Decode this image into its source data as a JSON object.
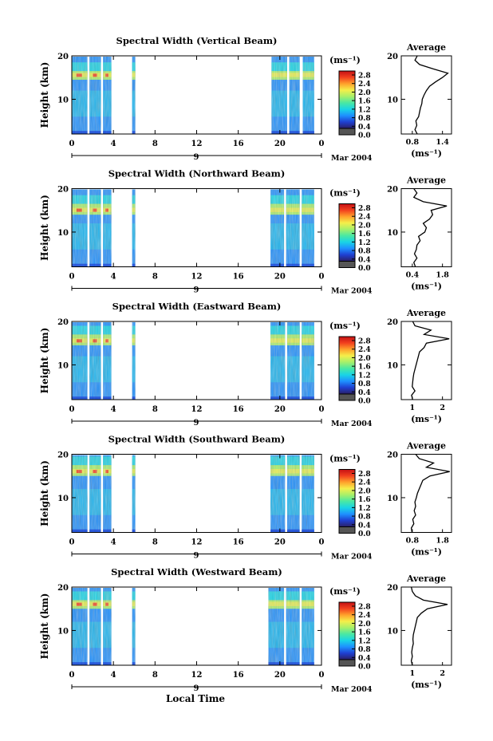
{
  "figure": {
    "xlabel": "Local Time",
    "ylabel": "Height (km)",
    "date_label": "Mar 2004",
    "day_label": "9",
    "colorbar_unit": "(ms⁻¹)",
    "colorbar_ticks": [
      "2.8",
      "2.4",
      "2.0",
      "1.6",
      "1.2",
      "0.8",
      "0.4",
      "0.0"
    ],
    "average_title": "Average",
    "average_unit": "(ms⁻¹)",
    "x_ticks": [
      "0",
      "4",
      "8",
      "12",
      "16",
      "20",
      "0"
    ],
    "y_ticks": [
      "20",
      "10"
    ]
  },
  "colors": {
    "colormap": [
      "#2a1f66",
      "#1f3fd1",
      "#1e90ff",
      "#19d4e6",
      "#49e8a4",
      "#a6f06a",
      "#f5ef4a",
      "#ffa12b",
      "#f2401e",
      "#c41014"
    ]
  },
  "chart_data": [
    {
      "type": "heatmap",
      "title": "Spectral Width (Vertical Beam)",
      "xlabel": "Local Time",
      "ylabel": "Height (km)",
      "xlim": [
        0,
        24
      ],
      "ylim": [
        2,
        20
      ],
      "clim": [
        0.0,
        3.0
      ],
      "data_intervals_hours": [
        [
          0.0,
          1.5
        ],
        [
          1.7,
          2.8
        ],
        [
          3.0,
          3.8
        ],
        [
          5.8,
          6.1
        ],
        [
          19.2,
          20.7
        ],
        [
          20.9,
          21.9
        ],
        [
          22.2,
          23.3
        ]
      ],
      "layer_km": [
        14.5,
        16.5
      ],
      "average_profile": {
        "xlim": [
          0.4,
          1.5
        ],
        "xticks": [
          "0.8",
          "1.4"
        ],
        "height_km": [
          2,
          3,
          4,
          5,
          6,
          7,
          8,
          9,
          10,
          11,
          12,
          13,
          14,
          15,
          16,
          17,
          18,
          19,
          20
        ],
        "values": [
          0.75,
          0.7,
          0.74,
          0.72,
          0.78,
          0.8,
          0.82,
          0.85,
          0.86,
          0.9,
          0.95,
          1.02,
          1.15,
          1.3,
          1.42,
          1.1,
          0.8,
          0.7,
          0.75
        ]
      }
    },
    {
      "type": "heatmap",
      "title": "Spectral Width (Northward Beam)",
      "xlabel": "Local Time",
      "ylabel": "Height (km)",
      "xlim": [
        0,
        24
      ],
      "ylim": [
        2,
        20
      ],
      "clim": [
        0.0,
        3.0
      ],
      "data_intervals_hours": [
        [
          0.0,
          1.5
        ],
        [
          1.7,
          2.8
        ],
        [
          3.0,
          3.8
        ],
        [
          5.8,
          6.1
        ],
        [
          19.1,
          20.4
        ],
        [
          20.6,
          21.9
        ],
        [
          22.1,
          23.3
        ]
      ],
      "layer_km": [
        14.0,
        16.5
      ],
      "average_profile": {
        "xlim": [
          0.3,
          1.9
        ],
        "xticks": [
          "0.4",
          "1.8"
        ],
        "height_km": [
          2,
          3,
          4,
          5,
          6,
          7,
          8,
          9,
          10,
          11,
          12,
          13,
          14,
          15,
          16,
          17,
          18,
          19,
          20
        ],
        "values": [
          0.75,
          0.7,
          0.8,
          0.72,
          0.78,
          0.8,
          0.9,
          0.85,
          1.05,
          1.1,
          1.0,
          1.2,
          1.3,
          1.25,
          1.75,
          1.0,
          0.7,
          0.8,
          0.7
        ]
      }
    },
    {
      "type": "heatmap",
      "title": "Spectral Width (Eastward Beam)",
      "xlabel": "Local Time",
      "ylabel": "Height (km)",
      "xlim": [
        0,
        24
      ],
      "ylim": [
        2,
        20
      ],
      "clim": [
        0.0,
        3.0
      ],
      "data_intervals_hours": [
        [
          0.0,
          1.5
        ],
        [
          1.7,
          2.8
        ],
        [
          3.0,
          3.8
        ],
        [
          5.8,
          6.1
        ],
        [
          19.1,
          20.5
        ],
        [
          20.7,
          21.9
        ],
        [
          22.1,
          23.3
        ]
      ],
      "layer_km": [
        14.5,
        17.0
      ],
      "average_profile": {
        "xlim": [
          0.3,
          2.5
        ],
        "xticks": [
          "1",
          "2"
        ],
        "height_km": [
          2,
          3,
          4,
          5,
          6,
          7,
          8,
          9,
          10,
          11,
          12,
          13,
          14,
          15,
          16,
          17,
          18,
          19,
          20
        ],
        "values": [
          0.8,
          0.75,
          0.9,
          0.78,
          0.8,
          0.82,
          0.85,
          0.9,
          0.95,
          1.0,
          1.05,
          1.1,
          1.3,
          1.4,
          2.4,
          1.3,
          1.6,
          0.9,
          0.8
        ]
      }
    },
    {
      "type": "heatmap",
      "title": "Spectral Width (Southward Beam)",
      "xlabel": "Local Time",
      "ylabel": "Height (km)",
      "xlim": [
        0,
        24
      ],
      "ylim": [
        2,
        20
      ],
      "clim": [
        0.0,
        3.0
      ],
      "data_intervals_hours": [
        [
          0.0,
          1.5
        ],
        [
          1.7,
          2.8
        ],
        [
          3.0,
          3.8
        ],
        [
          5.8,
          6.1
        ],
        [
          19.1,
          20.5
        ],
        [
          20.7,
          21.9
        ],
        [
          22.1,
          23.3
        ]
      ],
      "layer_km": [
        15.0,
        17.5
      ],
      "average_profile": {
        "xlim": [
          0.5,
          1.9
        ],
        "xticks": [
          "0.8",
          "1.8"
        ],
        "height_km": [
          2,
          3,
          4,
          5,
          6,
          7,
          8,
          9,
          10,
          11,
          12,
          13,
          14,
          15,
          16,
          17,
          18,
          19,
          20
        ],
        "values": [
          0.8,
          0.78,
          0.85,
          0.82,
          0.9,
          0.86,
          0.9,
          0.88,
          0.92,
          0.95,
          1.0,
          1.05,
          1.1,
          1.3,
          1.85,
          1.2,
          1.4,
          1.0,
          0.9
        ]
      }
    },
    {
      "type": "heatmap",
      "title": "Spectral Width (Westward Beam)",
      "xlabel": "Local Time",
      "ylabel": "Height (km)",
      "xlim": [
        0,
        24
      ],
      "ylim": [
        2,
        20
      ],
      "clim": [
        0.0,
        3.0
      ],
      "data_intervals_hours": [
        [
          0.0,
          1.5
        ],
        [
          1.7,
          2.8
        ],
        [
          3.0,
          3.8
        ],
        [
          5.8,
          6.1
        ],
        [
          18.9,
          20.4
        ],
        [
          20.6,
          21.9
        ],
        [
          22.1,
          23.3
        ]
      ],
      "layer_km": [
        15.0,
        17.0
      ],
      "average_profile": {
        "xlim": [
          0.3,
          2.8
        ],
        "xticks": [
          "1",
          "2"
        ],
        "height_km": [
          2,
          3,
          4,
          5,
          6,
          7,
          8,
          9,
          10,
          11,
          12,
          13,
          14,
          15,
          16,
          17,
          18,
          19,
          20
        ],
        "values": [
          0.85,
          0.8,
          0.85,
          0.82,
          0.85,
          0.9,
          0.88,
          0.9,
          0.95,
          1.0,
          1.05,
          1.1,
          1.3,
          1.6,
          2.6,
          1.4,
          1.0,
          0.85,
          0.8
        ]
      }
    }
  ]
}
